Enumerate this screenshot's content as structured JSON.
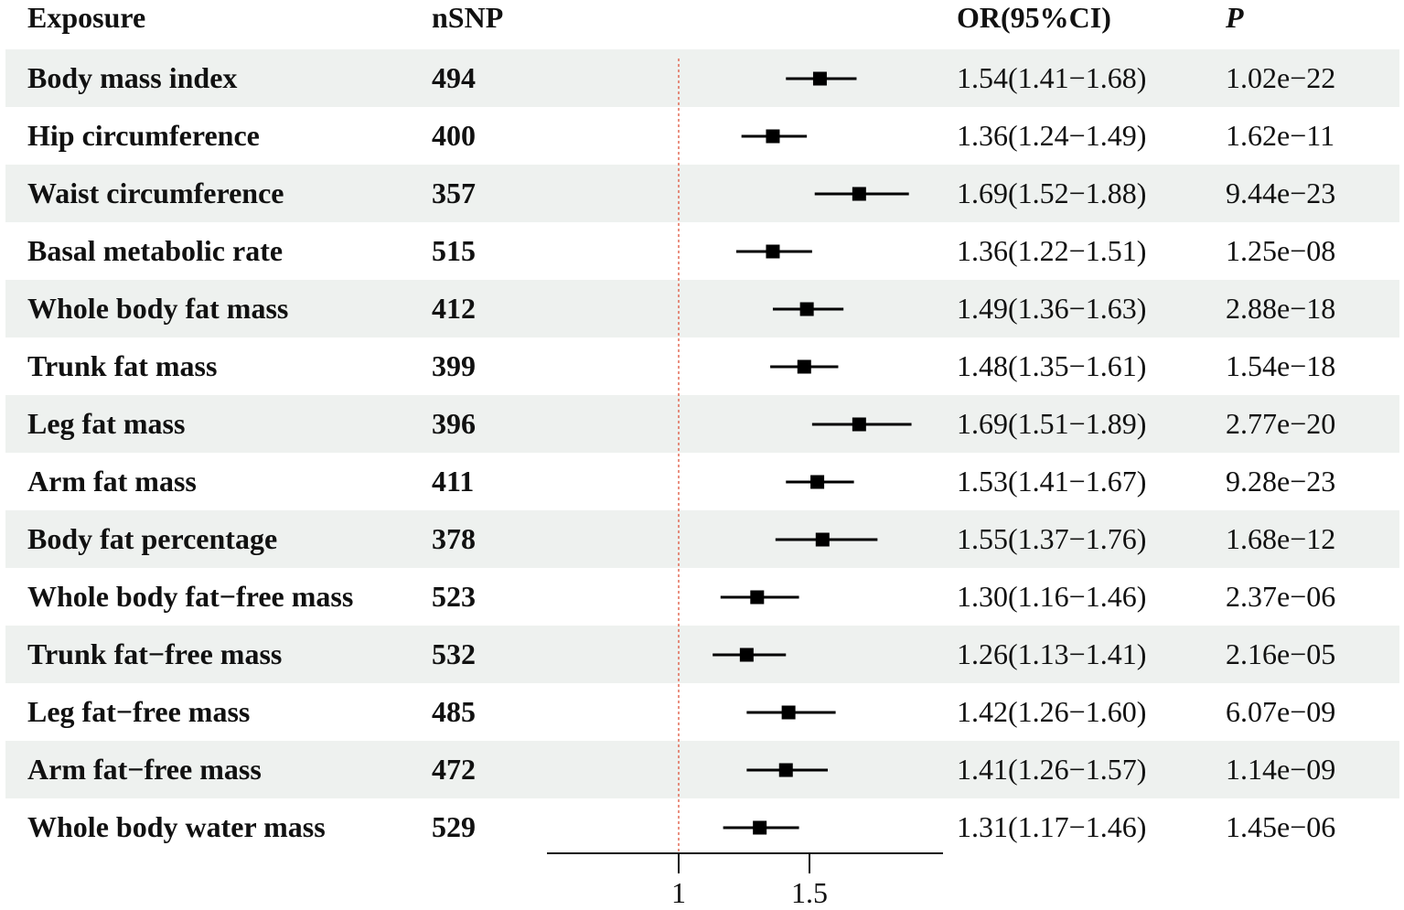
{
  "headers": {
    "exposure": "Exposure",
    "nsnp": "nSNP",
    "or_ci": "OR(95%CI)",
    "p": "P"
  },
  "chart_data": {
    "type": "forest",
    "xlabel": "",
    "reference_line": 1,
    "xlim": [
      0.5,
      2.0
    ],
    "x_ticks": [
      1,
      1.5
    ],
    "x_tick_labels": [
      "1",
      "1.5"
    ],
    "rows": [
      {
        "exposure": "Body mass index",
        "nsnp": "494",
        "or": 1.54,
        "lo": 1.41,
        "hi": 1.68,
        "or_ci": "1.54(1.41−1.68)",
        "p": "1.02e−22"
      },
      {
        "exposure": "Hip circumference",
        "nsnp": "400",
        "or": 1.36,
        "lo": 1.24,
        "hi": 1.49,
        "or_ci": "1.36(1.24−1.49)",
        "p": "1.62e−11"
      },
      {
        "exposure": "Waist circumference",
        "nsnp": "357",
        "or": 1.69,
        "lo": 1.52,
        "hi": 1.88,
        "or_ci": "1.69(1.52−1.88)",
        "p": "9.44e−23"
      },
      {
        "exposure": "Basal metabolic rate",
        "nsnp": "515",
        "or": 1.36,
        "lo": 1.22,
        "hi": 1.51,
        "or_ci": "1.36(1.22−1.51)",
        "p": "1.25e−08"
      },
      {
        "exposure": "Whole body fat mass",
        "nsnp": "412",
        "or": 1.49,
        "lo": 1.36,
        "hi": 1.63,
        "or_ci": "1.49(1.36−1.63)",
        "p": "2.88e−18"
      },
      {
        "exposure": "Trunk fat mass",
        "nsnp": "399",
        "or": 1.48,
        "lo": 1.35,
        "hi": 1.61,
        "or_ci": "1.48(1.35−1.61)",
        "p": "1.54e−18"
      },
      {
        "exposure": "Leg fat mass",
        "nsnp": "396",
        "or": 1.69,
        "lo": 1.51,
        "hi": 1.89,
        "or_ci": "1.69(1.51−1.89)",
        "p": "2.77e−20"
      },
      {
        "exposure": "Arm fat mass",
        "nsnp": "411",
        "or": 1.53,
        "lo": 1.41,
        "hi": 1.67,
        "or_ci": "1.53(1.41−1.67)",
        "p": "9.28e−23"
      },
      {
        "exposure": "Body fat percentage",
        "nsnp": "378",
        "or": 1.55,
        "lo": 1.37,
        "hi": 1.76,
        "or_ci": "1.55(1.37−1.76)",
        "p": "1.68e−12"
      },
      {
        "exposure": "Whole body fat−free mass",
        "nsnp": "523",
        "or": 1.3,
        "lo": 1.16,
        "hi": 1.46,
        "or_ci": "1.30(1.16−1.46)",
        "p": "2.37e−06"
      },
      {
        "exposure": "Trunk fat−free mass",
        "nsnp": "532",
        "or": 1.26,
        "lo": 1.13,
        "hi": 1.41,
        "or_ci": "1.26(1.13−1.41)",
        "p": "2.16e−05"
      },
      {
        "exposure": "Leg fat−free mass",
        "nsnp": "485",
        "or": 1.42,
        "lo": 1.26,
        "hi": 1.6,
        "or_ci": "1.42(1.26−1.60)",
        "p": "6.07e−09"
      },
      {
        "exposure": "Arm fat−free mass",
        "nsnp": "472",
        "or": 1.41,
        "lo": 1.26,
        "hi": 1.57,
        "or_ci": "1.41(1.26−1.57)",
        "p": "1.14e−09"
      },
      {
        "exposure": "Whole body water mass",
        "nsnp": "529",
        "or": 1.31,
        "lo": 1.17,
        "hi": 1.46,
        "or_ci": "1.31(1.17−1.46)",
        "p": "1.45e−06"
      }
    ]
  },
  "colors": {
    "row_shade": "#eef1ef",
    "marker": "#000000",
    "reference_line": "#e0604a",
    "axis": "#111111"
  }
}
